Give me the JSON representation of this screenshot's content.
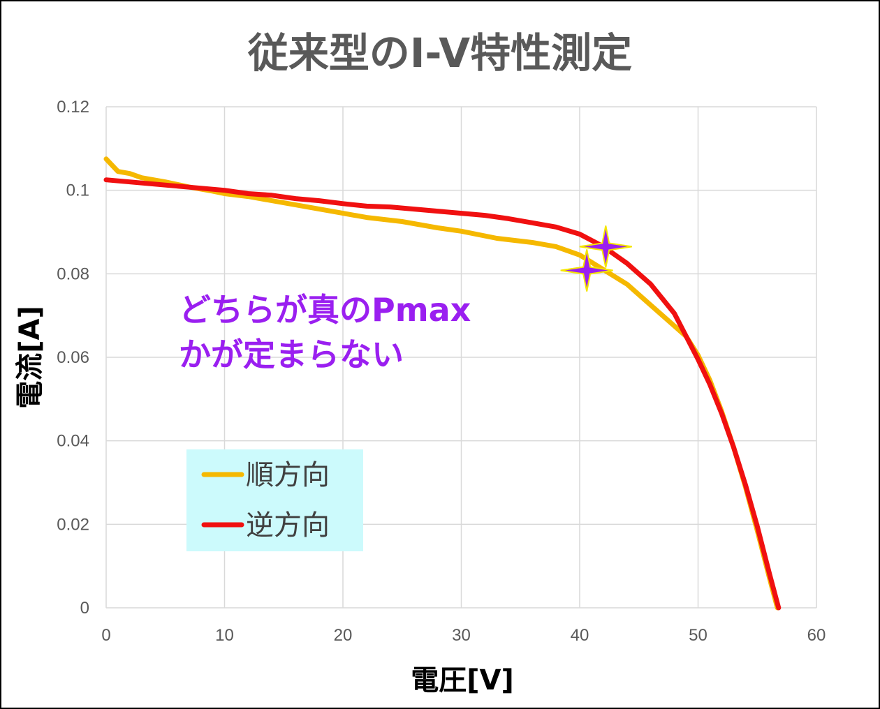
{
  "chart_data": {
    "type": "line",
    "title": "従来型のI-V特性測定",
    "xlabel": "電圧[V]",
    "ylabel": "電流[A]",
    "xlim": [
      0,
      60
    ],
    "ylim": [
      0,
      0.12
    ],
    "grid": true,
    "x_ticks": [
      "0",
      "10",
      "20",
      "30",
      "40",
      "50",
      "60"
    ],
    "y_ticks": [
      "0",
      "0.02",
      "0.04",
      "0.06",
      "0.08",
      "0.1",
      "0.12"
    ],
    "series": [
      {
        "name": "順方向",
        "color": "#f5b800",
        "points": [
          [
            0,
            0.1075
          ],
          [
            0.5,
            0.106
          ],
          [
            1,
            0.1045
          ],
          [
            2,
            0.104
          ],
          [
            3,
            0.103
          ],
          [
            5,
            0.102
          ],
          [
            7,
            0.1008
          ],
          [
            9,
            0.0998
          ],
          [
            10,
            0.0992
          ],
          [
            12,
            0.0985
          ],
          [
            15,
            0.097
          ],
          [
            18,
            0.0955
          ],
          [
            20,
            0.0945
          ],
          [
            22,
            0.0935
          ],
          [
            25,
            0.0925
          ],
          [
            28,
            0.091
          ],
          [
            30,
            0.0902
          ],
          [
            33,
            0.0885
          ],
          [
            36,
            0.0875
          ],
          [
            38,
            0.0865
          ],
          [
            40,
            0.0845
          ],
          [
            42,
            0.081
          ],
          [
            44,
            0.0775
          ],
          [
            46,
            0.0725
          ],
          [
            48,
            0.0675
          ],
          [
            49,
            0.065
          ],
          [
            50,
            0.0605
          ],
          [
            51,
            0.0545
          ],
          [
            52,
            0.047
          ],
          [
            53,
            0.0385
          ],
          [
            54,
            0.029
          ],
          [
            55,
            0.0185
          ],
          [
            56,
            0.0075
          ],
          [
            56.7,
            0
          ]
        ]
      },
      {
        "name": "逆方向",
        "color": "#f01010",
        "points": [
          [
            0,
            0.1025
          ],
          [
            2,
            0.102
          ],
          [
            4,
            0.1015
          ],
          [
            6,
            0.101
          ],
          [
            8,
            0.1005
          ],
          [
            10,
            0.1
          ],
          [
            12,
            0.0992
          ],
          [
            14,
            0.0988
          ],
          [
            16,
            0.098
          ],
          [
            18,
            0.0975
          ],
          [
            20,
            0.0968
          ],
          [
            22,
            0.0962
          ],
          [
            24,
            0.096
          ],
          [
            26,
            0.0955
          ],
          [
            28,
            0.095
          ],
          [
            30,
            0.0945
          ],
          [
            32,
            0.094
          ],
          [
            34,
            0.0932
          ],
          [
            36,
            0.0922
          ],
          [
            38,
            0.0912
          ],
          [
            40,
            0.0895
          ],
          [
            42,
            0.0865
          ],
          [
            44,
            0.0825
          ],
          [
            46,
            0.0775
          ],
          [
            48,
            0.0705
          ],
          [
            50,
            0.0595
          ],
          [
            51,
            0.0535
          ],
          [
            52,
            0.0465
          ],
          [
            53,
            0.0385
          ],
          [
            54,
            0.0295
          ],
          [
            55,
            0.0195
          ],
          [
            56,
            0.0085
          ],
          [
            56.8,
            0
          ]
        ]
      }
    ],
    "markers": [
      {
        "name": "pmax-star-forward",
        "x": 40.6,
        "y": 0.0808,
        "color": "#9a1ff0"
      },
      {
        "name": "pmax-star-reverse",
        "x": 42.2,
        "y": 0.0865,
        "color": "#9a1ff0"
      }
    ],
    "annotation_lines": [
      "どちらが真のPmax",
      "かが定まらない"
    ],
    "legend_placement": "lower-left"
  }
}
